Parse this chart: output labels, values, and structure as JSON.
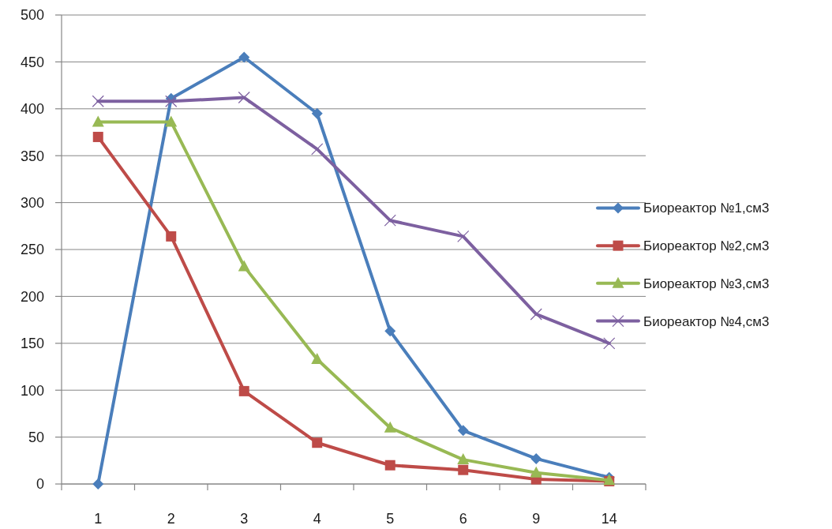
{
  "chart_data": {
    "type": "line",
    "categories": [
      "1",
      "2",
      "3",
      "4",
      "5",
      "6",
      "9",
      "14"
    ],
    "ylim": [
      0,
      500
    ],
    "yticks": [
      0,
      50,
      100,
      150,
      200,
      250,
      300,
      350,
      400,
      450,
      500
    ],
    "grid": "y",
    "legend": "right",
    "series": [
      {
        "name": "Биореактор №1,см3",
        "color": "#4a7ebb",
        "marker": "diamond",
        "values": [
          0,
          411,
          455,
          395,
          163,
          57,
          27,
          7
        ]
      },
      {
        "name": "Биореактор №2,см3",
        "color": "#be4b48",
        "marker": "square",
        "values": [
          370,
          264,
          99,
          44,
          20,
          15,
          5,
          3
        ]
      },
      {
        "name": "Биореактор №3,см3",
        "color": "#98b954",
        "marker": "triangle",
        "values": [
          386,
          386,
          232,
          133,
          60,
          26,
          12,
          4
        ]
      },
      {
        "name": "Биореактор №4,см3",
        "color": "#7d60a0",
        "marker": "cross",
        "values": [
          408,
          408,
          412,
          357,
          281,
          264,
          181,
          150
        ]
      }
    ]
  }
}
